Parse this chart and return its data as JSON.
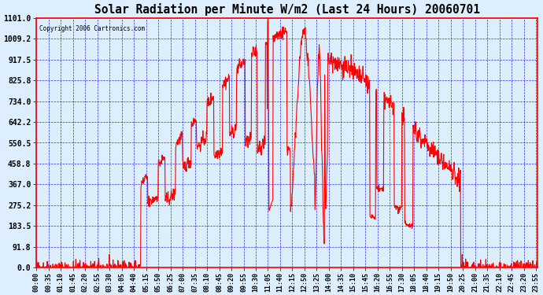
{
  "title": "Solar Radiation per Minute W/m2 (Last 24 Hours) 20060701",
  "copyright_text": "Copyright 2006 Cartronics.com",
  "background_color": "#ddeeff",
  "plot_bg_color": "#ddeeff",
  "line_color": "red",
  "grid_color": "blue",
  "yticks": [
    0.0,
    91.8,
    183.5,
    275.2,
    367.0,
    458.8,
    550.5,
    642.2,
    734.0,
    825.8,
    917.5,
    1009.2,
    1101.0
  ],
  "xtick_labels": [
    "00:00",
    "00:35",
    "01:10",
    "01:45",
    "02:20",
    "02:55",
    "03:30",
    "04:05",
    "04:40",
    "05:15",
    "05:50",
    "06:25",
    "07:00",
    "07:35",
    "08:10",
    "08:45",
    "09:20",
    "09:55",
    "10:30",
    "11:05",
    "11:40",
    "12:15",
    "12:50",
    "13:25",
    "14:00",
    "14:35",
    "15:10",
    "15:45",
    "16:20",
    "16:55",
    "17:30",
    "18:05",
    "18:40",
    "19:15",
    "19:50",
    "20:25",
    "21:00",
    "21:35",
    "22:10",
    "22:45",
    "23:20",
    "23:55"
  ],
  "ymin": 0.0,
  "ymax": 1101.0
}
